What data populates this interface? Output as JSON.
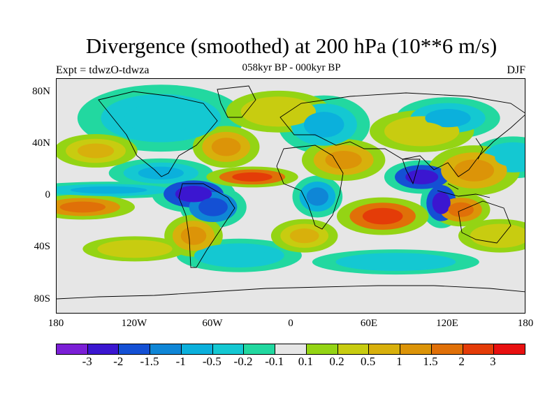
{
  "title": "Divergence (smoothed) at 200 hPa (10**6 m/s)",
  "subtitle": "058kyr BP - 000kyr BP",
  "left_label": "Expt = tdwzO-tdwza",
  "right_label": "DJF",
  "colors": {
    "palette": [
      "#7b1fd6",
      "#3b16d0",
      "#1450d4",
      "#0f86d6",
      "#0bb0dc",
      "#14c8d2",
      "#22d8a0",
      "#e6e6e6",
      "#94d414",
      "#c8cc10",
      "#d8b00c",
      "#dc9408",
      "#e07008",
      "#e43c08",
      "#e81010"
    ],
    "land_outline": "#000000"
  },
  "map": {
    "lat_ticks": [
      "80N",
      "40N",
      "0",
      "40S",
      "80S"
    ],
    "lon_ticks": [
      "180",
      "120W",
      "60W",
      "0",
      "60E",
      "120E",
      "180"
    ],
    "projection": "cylindrical equidistant",
    "lon_range": [
      -180,
      180
    ],
    "lat_range": [
      -90,
      90
    ]
  },
  "colorbar": {
    "labels": [
      "-3",
      "-2",
      "-1.5",
      "-1",
      "-0.5",
      "-0.2",
      "-0.1",
      "0.1",
      "0.2",
      "0.5",
      "1",
      "1.5",
      "2",
      "3"
    ]
  },
  "features": [
    {
      "kind": "negative",
      "lon": -140,
      "lat": 5,
      "rx": 42,
      "ry": 4,
      "level": 4
    },
    {
      "kind": "negative",
      "lon": -75,
      "lat": 2,
      "rx": 20,
      "ry": 9,
      "level": 1
    },
    {
      "kind": "negative",
      "lon": -60,
      "lat": -8,
      "rx": 16,
      "ry": 10,
      "level": 2
    },
    {
      "kind": "negative",
      "lon": -100,
      "lat": 18,
      "rx": 25,
      "ry": 7,
      "level": 4
    },
    {
      "kind": "negative",
      "lon": 100,
      "lat": 15,
      "rx": 18,
      "ry": 8,
      "level": 1
    },
    {
      "kind": "negative",
      "lon": 115,
      "lat": -5,
      "rx": 10,
      "ry": 12,
      "level": 1
    },
    {
      "kind": "negative",
      "lon": 20,
      "lat": 0,
      "rx": 12,
      "ry": 10,
      "level": 3
    },
    {
      "kind": "negative",
      "lon": -100,
      "lat": 60,
      "rx": 40,
      "ry": 16,
      "level": 5
    },
    {
      "kind": "negative",
      "lon": 25,
      "lat": 55,
      "rx": 22,
      "ry": 14,
      "level": 4
    },
    {
      "kind": "negative",
      "lon": 120,
      "lat": 60,
      "rx": 25,
      "ry": 10,
      "level": 4
    },
    {
      "kind": "negative",
      "lon": -40,
      "lat": -45,
      "rx": 30,
      "ry": 8,
      "level": 5
    },
    {
      "kind": "negative",
      "lon": 80,
      "lat": -50,
      "rx": 40,
      "ry": 6,
      "level": 5
    },
    {
      "kind": "negative",
      "lon": 170,
      "lat": 30,
      "rx": 20,
      "ry": 10,
      "level": 5
    },
    {
      "kind": "positive",
      "lon": -160,
      "lat": -8,
      "rx": 25,
      "ry": 6,
      "level": 12
    },
    {
      "kind": "positive",
      "lon": -30,
      "lat": 15,
      "rx": 22,
      "ry": 5,
      "level": 13
    },
    {
      "kind": "positive",
      "lon": 70,
      "lat": -15,
      "rx": 22,
      "ry": 9,
      "level": 13
    },
    {
      "kind": "positive",
      "lon": 140,
      "lat": 20,
      "rx": 22,
      "ry": 12,
      "level": 11
    },
    {
      "kind": "positive",
      "lon": 130,
      "lat": -10,
      "rx": 14,
      "ry": 8,
      "level": 12
    },
    {
      "kind": "positive",
      "lon": -50,
      "lat": 38,
      "rx": 16,
      "ry": 10,
      "level": 11
    },
    {
      "kind": "positive",
      "lon": 40,
      "lat": 28,
      "rx": 20,
      "ry": 10,
      "level": 11
    },
    {
      "kind": "positive",
      "lon": -150,
      "lat": 35,
      "rx": 20,
      "ry": 8,
      "level": 10
    },
    {
      "kind": "positive",
      "lon": -75,
      "lat": -30,
      "rx": 14,
      "ry": 10,
      "level": 11
    },
    {
      "kind": "positive",
      "lon": 10,
      "lat": -30,
      "rx": 16,
      "ry": 8,
      "level": 10
    },
    {
      "kind": "positive",
      "lon": 160,
      "lat": -30,
      "rx": 20,
      "ry": 8,
      "level": 9
    },
    {
      "kind": "positive",
      "lon": -120,
      "lat": -40,
      "rx": 25,
      "ry": 6,
      "level": 9
    },
    {
      "kind": "positive",
      "lon": 100,
      "lat": 50,
      "rx": 25,
      "ry": 10,
      "level": 9
    },
    {
      "kind": "positive",
      "lon": -10,
      "lat": 65,
      "rx": 25,
      "ry": 10,
      "level": 9
    }
  ]
}
